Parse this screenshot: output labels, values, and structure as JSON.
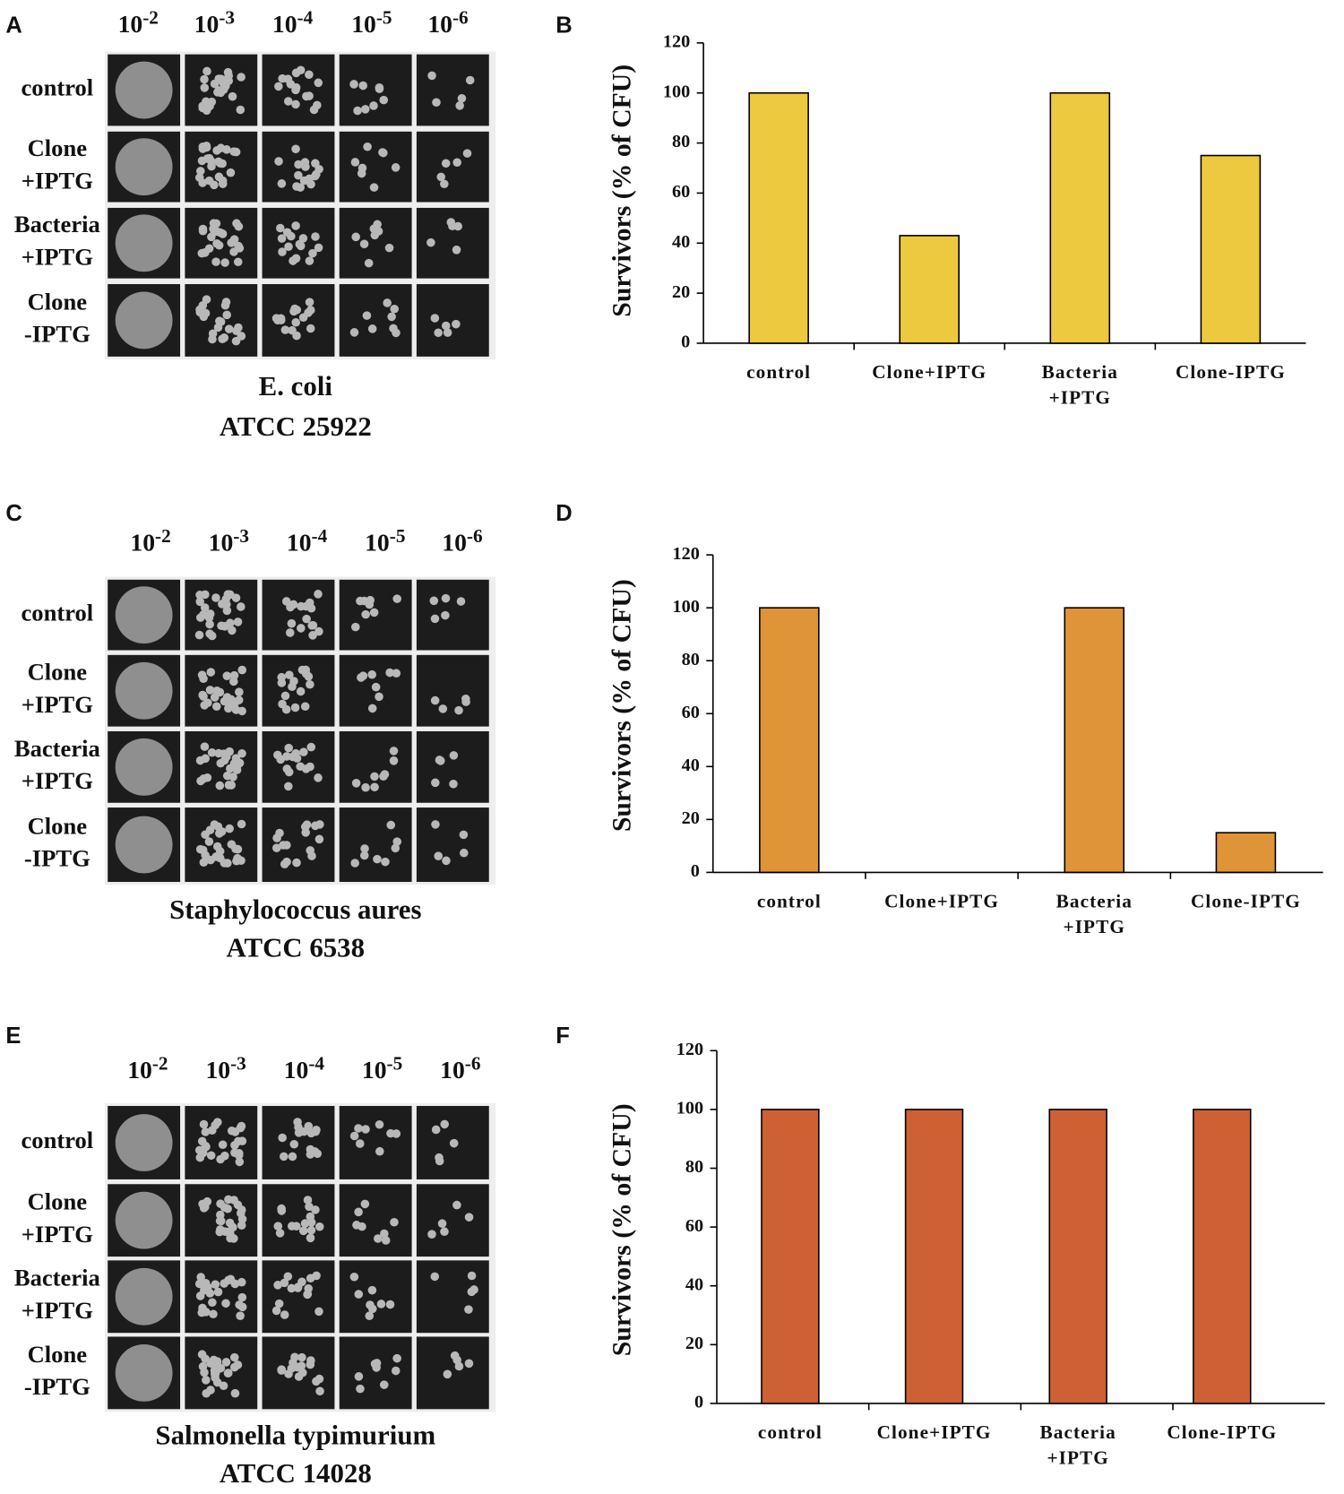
{
  "plates": [
    {
      "label": "A",
      "dilutions": [
        {
          "base": "10",
          "exp": "-2"
        },
        {
          "base": "10",
          "exp": "-3"
        },
        {
          "base": "10",
          "exp": "-4"
        },
        {
          "base": "10",
          "exp": "-5"
        },
        {
          "base": "10",
          "exp": "-6"
        }
      ],
      "rows": [
        "control",
        "Clone +IPTG",
        "Bacteria +IPTG",
        "Clone -IPTG"
      ],
      "caption": [
        "E. coli",
        "ATCC 25922"
      ]
    },
    {
      "label": "C",
      "dilutions": [
        {
          "base": "10",
          "exp": "-2"
        },
        {
          "base": "10",
          "exp": "-3"
        },
        {
          "base": "10",
          "exp": "-4"
        },
        {
          "base": "10",
          "exp": "-5"
        },
        {
          "base": "10",
          "exp": "-6"
        }
      ],
      "rows": [
        "control",
        "Clone +IPTG",
        "Bacteria +IPTG",
        "Clone -IPTG"
      ],
      "caption": [
        "Staphylococcus aures",
        "ATCC 6538"
      ]
    },
    {
      "label": "E",
      "dilutions": [
        {
          "base": "10",
          "exp": "-2"
        },
        {
          "base": "10",
          "exp": "-3"
        },
        {
          "base": "10",
          "exp": "-4"
        },
        {
          "base": "10",
          "exp": "-5"
        },
        {
          "base": "10",
          "exp": "-6"
        }
      ],
      "rows": [
        "control",
        "Clone +IPTG",
        "Bacteria +IPTG",
        "Clone -IPTG"
      ],
      "caption": [
        "Salmonella typimurium",
        "ATCC 14028"
      ]
    }
  ],
  "chart_data": [
    {
      "type": "bar",
      "label": "B",
      "ylabel": "Survivors (% of CFU)",
      "categories": [
        "control",
        "Clone+IPTG",
        "Bacteria +IPTG",
        "Clone-IPTG"
      ],
      "values": [
        100,
        43,
        100,
        75
      ],
      "color": "#ecc93f",
      "ylim": [
        0,
        120
      ],
      "yticks": [
        0,
        20,
        40,
        60,
        80,
        100,
        120
      ]
    },
    {
      "type": "bar",
      "label": "D",
      "ylabel": "Survivors (% of CFU)",
      "categories": [
        "control",
        "Clone+IPTG",
        "Bacteria +IPTG",
        "Clone-IPTG"
      ],
      "values": [
        100,
        0,
        100,
        15
      ],
      "color": "#df9437",
      "ylim": [
        0,
        120
      ],
      "yticks": [
        0,
        20,
        40,
        60,
        80,
        100,
        120
      ]
    },
    {
      "type": "bar",
      "label": "F",
      "ylabel": "Survivors (% of CFU)",
      "categories": [
        "control",
        "Clone+IPTG",
        "Bacteria +IPTG",
        "Clone-IPTG"
      ],
      "values": [
        100,
        100,
        100,
        100
      ],
      "color": "#cd6133",
      "ylim": [
        0,
        120
      ],
      "yticks": [
        0,
        20,
        40,
        60,
        80,
        100,
        120
      ]
    }
  ]
}
